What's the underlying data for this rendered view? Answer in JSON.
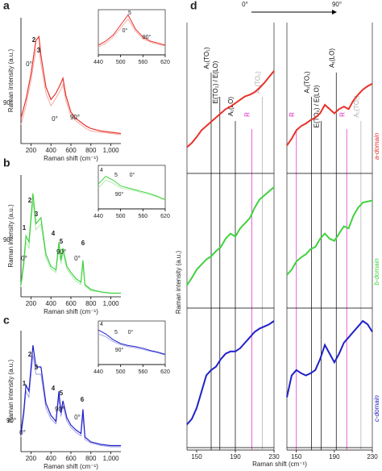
{
  "chart_data": [
    {
      "type": "line",
      "label": "a",
      "x_label": "Raman shift (cm⁻¹)",
      "y_label": "Raman intensity (a.u.)",
      "xlim": [
        100,
        1100
      ],
      "ylim": [
        0,
        1
      ],
      "xticks": [
        200,
        400,
        600,
        800,
        {
          "value": 1000,
          "label": "1,000"
        }
      ],
      "x": [
        100,
        150,
        200,
        250,
        280,
        300,
        350,
        400,
        450,
        500,
        520,
        550,
        600,
        650,
        700,
        750,
        800,
        900,
        1000,
        1100
      ],
      "series": [
        {
          "color": "#e8322a",
          "values": [
            0.2,
            0.35,
            0.55,
            0.82,
            0.85,
            0.7,
            0.45,
            0.35,
            0.4,
            0.48,
            0.52,
            0.38,
            0.25,
            0.2,
            0.17,
            0.14,
            0.12,
            0.1,
            0.09,
            0.08
          ]
        },
        {
          "color": "#f3a39d",
          "values": [
            0.15,
            0.3,
            0.5,
            0.74,
            0.77,
            0.63,
            0.4,
            0.3,
            0.36,
            0.43,
            0.47,
            0.34,
            0.22,
            0.18,
            0.15,
            0.12,
            0.1,
            0.09,
            0.08,
            0.07
          ]
        }
      ],
      "annotations": [
        "2",
        "3",
        "0°",
        "90°",
        "0°",
        "90°"
      ],
      "inset": {
        "xlim": [
          440,
          620
        ],
        "ylim": [
          0,
          1
        ],
        "xticks": [
          440,
          500,
          560,
          620
        ],
        "x": [
          440,
          460,
          480,
          500,
          520,
          540,
          560,
          580,
          600,
          620
        ],
        "series": [
          {
            "color": "#e8322a",
            "values": [
              0.2,
              0.3,
              0.45,
              0.7,
              0.95,
              0.6,
              0.4,
              0.3,
              0.25,
              0.2
            ]
          },
          {
            "color": "#f3a39d",
            "values": [
              0.15,
              0.25,
              0.4,
              0.62,
              0.85,
              0.55,
              0.36,
              0.27,
              0.22,
              0.18
            ]
          }
        ],
        "annotations": [
          "5",
          "0°",
          "90°"
        ]
      }
    },
    {
      "type": "line",
      "label": "b",
      "x_label": "Raman shift (cm⁻¹)",
      "y_label": "Raman intensity (a.u.)",
      "xlim": [
        100,
        1100
      ],
      "ylim": [
        0,
        1
      ],
      "xticks": [
        200,
        400,
        600,
        800,
        {
          "value": 1000,
          "label": "1,000"
        }
      ],
      "x": [
        100,
        130,
        150,
        180,
        220,
        250,
        300,
        350,
        400,
        450,
        480,
        500,
        520,
        560,
        600,
        650,
        700,
        720,
        740,
        800,
        900,
        1000,
        1100
      ],
      "series": [
        {
          "color": "#3fd23f",
          "values": [
            0.1,
            0.3,
            0.5,
            0.45,
            0.85,
            0.6,
            0.65,
            0.35,
            0.25,
            0.22,
            0.45,
            0.3,
            0.4,
            0.25,
            0.2,
            0.15,
            0.12,
            0.3,
            0.1,
            0.06,
            0.04,
            0.03,
            0.03
          ]
        },
        {
          "color": "#a6eaa6",
          "values": [
            0.08,
            0.25,
            0.45,
            0.4,
            0.78,
            0.55,
            0.6,
            0.32,
            0.23,
            0.2,
            0.4,
            0.27,
            0.36,
            0.23,
            0.18,
            0.13,
            0.1,
            0.26,
            0.09,
            0.05,
            0.04,
            0.03,
            0.03
          ]
        }
      ],
      "annotations": [
        "1",
        "2",
        "3",
        "90°",
        "0°",
        "4",
        "5",
        "6",
        "0°",
        "90°"
      ],
      "inset": {
        "xlim": [
          440,
          620
        ],
        "ylim": [
          0,
          1
        ],
        "xticks": [
          440,
          500,
          560,
          620
        ],
        "x": [
          440,
          460,
          480,
          500,
          520,
          540,
          560,
          580,
          600,
          620
        ],
        "series": [
          {
            "color": "#3fd23f",
            "values": [
              0.6,
              0.8,
              0.7,
              0.55,
              0.5,
              0.45,
              0.4,
              0.35,
              0.28,
              0.2
            ]
          },
          {
            "color": "#a6eaa6",
            "values": [
              0.5,
              0.7,
              0.62,
              0.5,
              0.46,
              0.42,
              0.37,
              0.32,
              0.26,
              0.18
            ]
          }
        ],
        "annotations": [
          "4",
          "5",
          "0°",
          "90°"
        ]
      }
    },
    {
      "type": "line",
      "label": "c",
      "x_label": "Raman shift (cm⁻¹)",
      "y_label": "Raman intensity (a.u.)",
      "xlim": [
        100,
        1100
      ],
      "ylim": [
        0,
        1
      ],
      "xticks": [
        200,
        400,
        600,
        800,
        {
          "value": 1000,
          "label": "1,000"
        }
      ],
      "x": [
        100,
        130,
        150,
        180,
        220,
        250,
        300,
        350,
        400,
        450,
        480,
        500,
        520,
        560,
        600,
        650,
        700,
        720,
        740,
        800,
        900,
        1000,
        1100
      ],
      "series": [
        {
          "color": "#2020c8",
          "values": [
            0.15,
            0.35,
            0.55,
            0.5,
            0.88,
            0.7,
            0.7,
            0.4,
            0.3,
            0.25,
            0.5,
            0.32,
            0.42,
            0.28,
            0.22,
            0.18,
            0.15,
            0.35,
            0.12,
            0.08,
            0.06,
            0.05,
            0.05
          ]
        },
        {
          "color": "#9a9ae8",
          "values": [
            0.12,
            0.3,
            0.5,
            0.45,
            0.8,
            0.64,
            0.64,
            0.36,
            0.27,
            0.23,
            0.45,
            0.29,
            0.38,
            0.25,
            0.2,
            0.16,
            0.13,
            0.3,
            0.1,
            0.07,
            0.05,
            0.04,
            0.04
          ]
        }
      ],
      "annotations": [
        "1",
        "2",
        "3",
        "90°",
        "0°",
        "4",
        "5",
        "6",
        "0°",
        "90°"
      ],
      "inset": {
        "xlim": [
          440,
          620
        ],
        "ylim": [
          0,
          1
        ],
        "xticks": [
          440,
          500,
          560,
          620
        ],
        "x": [
          440,
          460,
          480,
          500,
          520,
          540,
          560,
          580,
          600,
          620
        ],
        "series": [
          {
            "color": "#2020c8",
            "values": [
              0.85,
              0.75,
              0.6,
              0.5,
              0.45,
              0.42,
              0.38,
              0.32,
              0.28,
              0.22
            ]
          },
          {
            "color": "#9a9ae8",
            "values": [
              0.75,
              0.68,
              0.55,
              0.47,
              0.42,
              0.39,
              0.35,
              0.3,
              0.26,
              0.2
            ]
          }
        ],
        "annotations": [
          "4",
          "5",
          "0°",
          "90°"
        ]
      }
    },
    {
      "type": "stacked-line",
      "label": "d",
      "columns": [
        "0°",
        "90°"
      ],
      "x_label": "Raman shift (cm⁻¹)",
      "y_label": "Raman intensity (a.u.)",
      "xlim": [
        140,
        230
      ],
      "ylim": [
        0,
        1
      ],
      "xticks": [
        150,
        190,
        230
      ],
      "x": [
        140,
        145,
        150,
        155,
        160,
        165,
        170,
        175,
        180,
        185,
        190,
        195,
        200,
        205,
        210,
        215,
        220,
        225,
        230
      ],
      "rows": [
        {
          "label": "a-domain",
          "color": "#e8322a",
          "series": [
            [
              0.1,
              0.15,
              0.22,
              0.3,
              0.35,
              0.4,
              0.45,
              0.5,
              0.55,
              0.58,
              0.62,
              0.66,
              0.7,
              0.72,
              0.75,
              0.8,
              0.86,
              0.93,
              1.0
            ],
            [
              0.12,
              0.2,
              0.3,
              0.35,
              0.38,
              0.42,
              0.45,
              0.5,
              0.6,
              0.55,
              0.5,
              0.55,
              0.58,
              0.55,
              0.65,
              0.72,
              0.78,
              0.82,
              0.85
            ]
          ]
        },
        {
          "label": "b-domain",
          "color": "#3fd23f",
          "series": [
            [
              0.05,
              0.12,
              0.2,
              0.25,
              0.3,
              0.33,
              0.38,
              0.42,
              0.5,
              0.55,
              0.52,
              0.6,
              0.65,
              0.7,
              0.8,
              0.88,
              0.92,
              0.96,
              1.0
            ],
            [
              0.15,
              0.2,
              0.28,
              0.32,
              0.35,
              0.4,
              0.42,
              0.5,
              0.55,
              0.5,
              0.48,
              0.55,
              0.62,
              0.6,
              0.72,
              0.8,
              0.85,
              0.86,
              0.87
            ]
          ]
        },
        {
          "label": "c-domain",
          "color": "#2020c8",
          "series": [
            [
              0.05,
              0.1,
              0.2,
              0.35,
              0.5,
              0.55,
              0.58,
              0.65,
              0.7,
              0.72,
              0.72,
              0.75,
              0.8,
              0.85,
              0.9,
              0.93,
              0.95,
              0.97,
              1.0
            ],
            [
              0.3,
              0.5,
              0.55,
              0.52,
              0.5,
              0.52,
              0.55,
              0.65,
              0.78,
              0.7,
              0.62,
              0.7,
              0.8,
              0.85,
              0.9,
              0.95,
              1.0,
              0.97,
              0.9
            ]
          ]
        }
      ],
      "modes": [
        [
          {
            "label": "A₁(TO₁)",
            "x": 165,
            "color": "#000000"
          },
          {
            "label": "E(TO₂) / E(LO)",
            "x": 174,
            "color": "#000000"
          },
          {
            "label": "A₁(LO)",
            "x": 190,
            "color": "#000000"
          },
          {
            "label": "R",
            "x": 207,
            "color": "#e020c0"
          },
          {
            "label": "A₁(TO₂)",
            "x": 218,
            "color": "#aaaaaa"
          }
        ],
        [
          {
            "label": "R",
            "x": 150,
            "color": "#e020c0"
          },
          {
            "label": "A₁(TO₁)",
            "x": 166,
            "color": "#000000"
          },
          {
            "label": "E(TO₂) / E(LO)",
            "x": 176,
            "color": "#000000"
          },
          {
            "label": "A₁(LO)",
            "x": 192,
            "color": "#000000"
          },
          {
            "label": "R",
            "x": 203,
            "color": "#e020c0"
          },
          {
            "label": "A₁(TO₂)",
            "x": 218,
            "color": "#aaaaaa"
          }
        ]
      ]
    }
  ]
}
